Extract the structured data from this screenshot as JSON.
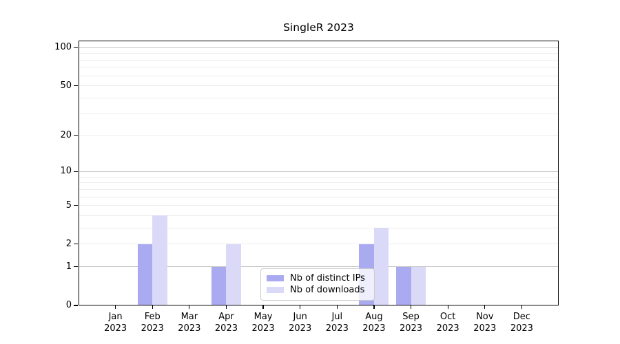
{
  "title": "SingleR 2023",
  "chart_data": {
    "type": "bar",
    "title": "SingleR 2023",
    "categories": [
      "Jan",
      "Feb",
      "Mar",
      "Apr",
      "May",
      "Jun",
      "Jul",
      "Aug",
      "Sep",
      "Oct",
      "Nov",
      "Dec"
    ],
    "year": "2023",
    "series": [
      {
        "name": "Nb of distinct IPs",
        "color": "#aaaaf0",
        "values": [
          0,
          2,
          0,
          1,
          0,
          0,
          0,
          2,
          1,
          0,
          0,
          0
        ]
      },
      {
        "name": "Nb of downloads",
        "color": "#dadaf8",
        "values": [
          0,
          4,
          0,
          2,
          0,
          0,
          0,
          3,
          1,
          0,
          0,
          0
        ]
      }
    ],
    "y_scale": "log1p",
    "y_ticks": [
      0,
      1,
      2,
      5,
      10,
      20,
      50,
      100
    ],
    "y_max": 113.6,
    "grid_major": [
      1,
      10,
      100
    ],
    "grid_minor": [
      2,
      3,
      4,
      5,
      6,
      7,
      8,
      9,
      20,
      30,
      40,
      50,
      60,
      70,
      80,
      90
    ],
    "grid_on": true,
    "legend_position": "lower center"
  },
  "colors": {
    "grid_major": "#c4c4c4",
    "grid_minor": "#ececec",
    "axis": "#000000",
    "legend_border": "#cccccc",
    "legend_bg": "rgba(255,255,255,0.8)"
  },
  "legend": {
    "items": [
      {
        "label": "Nb of distinct IPs",
        "color": "#aaaaf0"
      },
      {
        "label": "Nb of downloads",
        "color": "#dadaf8"
      }
    ]
  }
}
